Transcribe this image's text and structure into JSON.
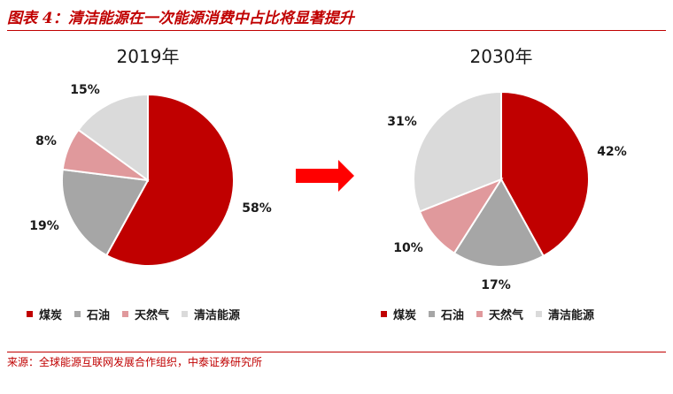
{
  "figure": {
    "title": "图表 4：清洁能源在一次能源消费中占比将显著提升",
    "source": "来源：全球能源互联网发展合作组织，中泰证券研究所"
  },
  "colors": {
    "煤炭": "#c00000",
    "石油": "#a6a6a6",
    "天然气": "#e0999c",
    "清洁能源": "#dadada",
    "accent": "#c00000"
  },
  "arrow_icon": "right-arrow-icon",
  "chart_data": [
    {
      "type": "pie",
      "title": "2019年",
      "categories": [
        "煤炭",
        "石油",
        "天然气",
        "清洁能源"
      ],
      "values": [
        58,
        19,
        8,
        15
      ],
      "labels": [
        "58%",
        "19%",
        "8%",
        "15%"
      ],
      "legend": [
        "煤炭",
        "石油",
        "天然气",
        "清洁能源"
      ]
    },
    {
      "type": "pie",
      "title": "2030年",
      "categories": [
        "煤炭",
        "石油",
        "天然气",
        "清洁能源"
      ],
      "values": [
        42,
        17,
        10,
        31
      ],
      "labels": [
        "42%",
        "17%",
        "10%",
        "31%"
      ],
      "legend": [
        "煤炭",
        "石油",
        "天然气",
        "清洁能源"
      ]
    }
  ]
}
